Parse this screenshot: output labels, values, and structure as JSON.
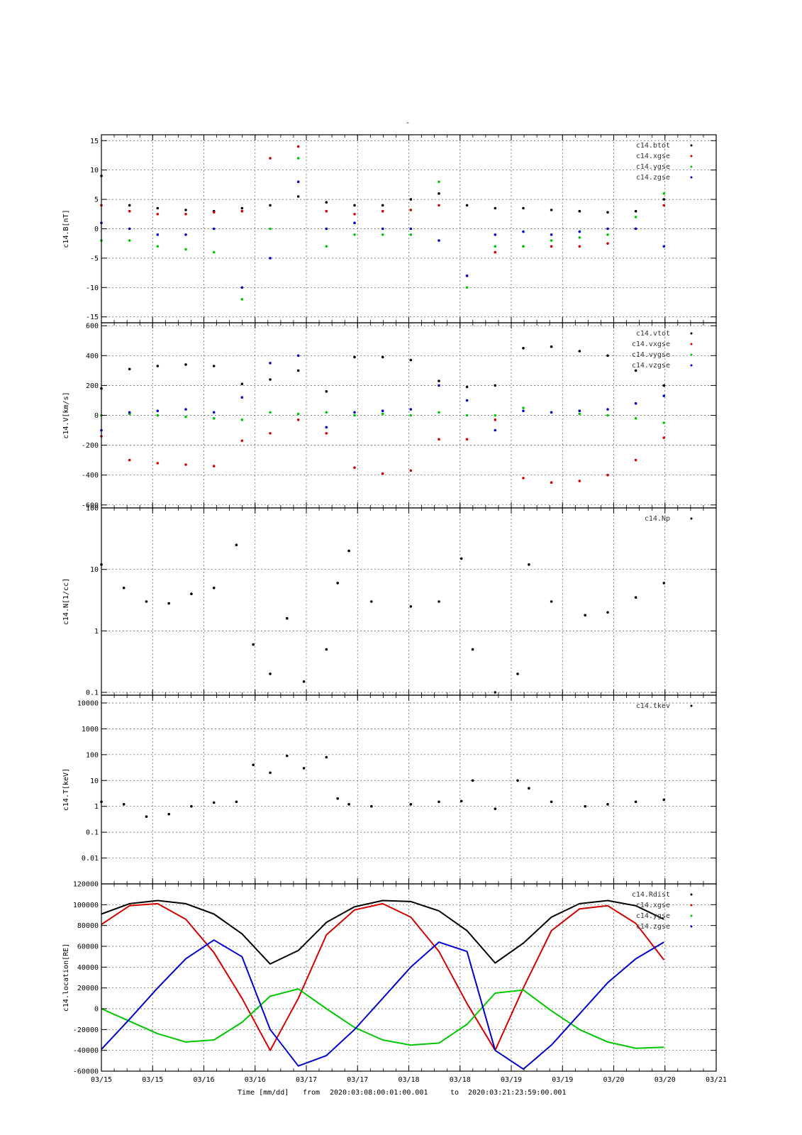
{
  "title": "-",
  "footer": {
    "time_label": "Time [mm/dd]",
    "from_label": "from",
    "from": "2020:03:08:00:01:00.001",
    "to_label": "to",
    "to": "2020:03:21:23:59:00.001"
  },
  "x_tick_labels": [
    "03/15",
    "03/15",
    "03/16",
    "03/16",
    "03/17",
    "03/17",
    "03/18",
    "03/18",
    "03/19",
    "03/19",
    "03/20",
    "03/20",
    "03/21"
  ],
  "colors": {
    "black": "#000000",
    "red": "#d40000",
    "green": "#00c800",
    "blue": "#0000d0"
  },
  "chart_data": [
    {
      "type": "scatter",
      "ylabel": "c14.B[nT]",
      "ylim": [
        -16,
        16
      ],
      "y_ticks": [
        -15,
        -10,
        -5,
        0,
        5,
        10,
        15
      ],
      "grid": true,
      "legend_position": "top-right",
      "series": [
        {
          "name": "c14.btot",
          "color": "black",
          "x": [
            0,
            0.05,
            0.1,
            0.15,
            0.2,
            0.25,
            0.3,
            0.35,
            0.4,
            0.45,
            0.5,
            0.55,
            0.6,
            0.65,
            0.7,
            0.75,
            0.8,
            0.85,
            0.9,
            0.95,
            1.0
          ],
          "y": [
            9,
            4,
            3.5,
            3.2,
            3,
            3.5,
            4,
            5.5,
            4.5,
            4,
            4,
            5,
            6,
            4,
            3.5,
            3.5,
            3.2,
            3,
            2.8,
            3,
            5
          ]
        },
        {
          "name": "c14.xgse",
          "color": "red",
          "x": [
            0,
            0.05,
            0.1,
            0.15,
            0.2,
            0.25,
            0.3,
            0.35,
            0.4,
            0.45,
            0.5,
            0.55,
            0.6,
            0.65,
            0.7,
            0.75,
            0.8,
            0.85,
            0.9,
            0.95,
            1.0
          ],
          "y": [
            4,
            3,
            2.5,
            2.5,
            2.8,
            3,
            12,
            14,
            3,
            2.5,
            3,
            3.2,
            4,
            -8,
            -4,
            -3,
            -3,
            -3,
            -2.5,
            0,
            4
          ]
        },
        {
          "name": "c14.ygse",
          "color": "green",
          "x": [
            0,
            0.05,
            0.1,
            0.15,
            0.2,
            0.25,
            0.3,
            0.35,
            0.4,
            0.45,
            0.5,
            0.55,
            0.6,
            0.65,
            0.7,
            0.75,
            0.8,
            0.85,
            0.9,
            0.95,
            1.0
          ],
          "y": [
            -2,
            -2,
            -3,
            -3.5,
            -4,
            -12,
            0,
            12,
            -3,
            -1,
            -1,
            -1,
            8,
            -10,
            -3,
            -3,
            -2,
            -1.5,
            -1,
            2,
            6
          ]
        },
        {
          "name": "c14.zgse",
          "color": "blue",
          "x": [
            0,
            0.05,
            0.1,
            0.15,
            0.2,
            0.25,
            0.3,
            0.35,
            0.4,
            0.45,
            0.5,
            0.55,
            0.6,
            0.65,
            0.7,
            0.75,
            0.8,
            0.85,
            0.9,
            0.95,
            1.0
          ],
          "y": [
            1,
            0,
            -1,
            -1,
            0,
            -10,
            -5,
            8,
            0,
            1,
            0,
            0,
            -2,
            -8,
            -1,
            -0.5,
            -1,
            -0.5,
            0,
            0,
            -3
          ]
        }
      ]
    },
    {
      "type": "scatter",
      "ylabel": "c14.V[km/s]",
      "ylim": [
        -620,
        620
      ],
      "y_ticks": [
        -600,
        -400,
        -200,
        0,
        200,
        400,
        600
      ],
      "grid": true,
      "legend_position": "top-right",
      "series": [
        {
          "name": "c14.vtot",
          "color": "black",
          "x": [
            0,
            0.05,
            0.1,
            0.15,
            0.2,
            0.25,
            0.3,
            0.35,
            0.4,
            0.45,
            0.5,
            0.55,
            0.6,
            0.65,
            0.7,
            0.75,
            0.8,
            0.85,
            0.9,
            0.95,
            1.0
          ],
          "y": [
            180,
            310,
            330,
            340,
            330,
            210,
            240,
            300,
            160,
            390,
            390,
            370,
            230,
            190,
            200,
            450,
            460,
            430,
            400,
            300,
            200
          ]
        },
        {
          "name": "c14.vxgse",
          "color": "red",
          "x": [
            0,
            0.05,
            0.1,
            0.15,
            0.2,
            0.25,
            0.3,
            0.35,
            0.4,
            0.45,
            0.5,
            0.55,
            0.6,
            0.65,
            0.7,
            0.75,
            0.8,
            0.85,
            0.9,
            0.95,
            1.0
          ],
          "y": [
            -140,
            -300,
            -320,
            -330,
            -340,
            -170,
            -120,
            -30,
            -120,
            -350,
            -390,
            -370,
            -160,
            -160,
            -30,
            -420,
            -450,
            -440,
            -400,
            -300,
            -150
          ]
        },
        {
          "name": "c14.vygse",
          "color": "green",
          "x": [
            0,
            0.05,
            0.1,
            0.15,
            0.2,
            0.25,
            0.3,
            0.35,
            0.4,
            0.45,
            0.5,
            0.55,
            0.6,
            0.65,
            0.7,
            0.75,
            0.8,
            0.85,
            0.9,
            0.95,
            1.0
          ],
          "y": [
            0,
            10,
            0,
            -10,
            -20,
            -30,
            20,
            10,
            20,
            0,
            10,
            0,
            20,
            0,
            0,
            50,
            20,
            10,
            0,
            -20,
            -50
          ]
        },
        {
          "name": "c14.vzgse",
          "color": "blue",
          "x": [
            0,
            0.05,
            0.1,
            0.15,
            0.2,
            0.25,
            0.3,
            0.35,
            0.4,
            0.45,
            0.5,
            0.55,
            0.6,
            0.65,
            0.7,
            0.75,
            0.8,
            0.85,
            0.9,
            0.95,
            1.0
          ],
          "y": [
            -100,
            20,
            30,
            40,
            20,
            120,
            350,
            400,
            -80,
            20,
            30,
            40,
            200,
            100,
            -100,
            30,
            20,
            30,
            40,
            80,
            130
          ]
        }
      ]
    },
    {
      "type": "scatter",
      "ylabel": "c14.N[1/cc]",
      "yscale": "log",
      "ylim": [
        0.09,
        100
      ],
      "y_ticks": [
        0.1,
        1,
        10,
        100
      ],
      "grid": true,
      "legend_position": "top-right",
      "series": [
        {
          "name": "c14.Np",
          "color": "black",
          "x": [
            0,
            0.04,
            0.08,
            0.12,
            0.16,
            0.2,
            0.24,
            0.27,
            0.3,
            0.33,
            0.36,
            0.4,
            0.42,
            0.44,
            0.48,
            0.55,
            0.6,
            0.64,
            0.66,
            0.7,
            0.74,
            0.76,
            0.8,
            0.86,
            0.9,
            0.95,
            1.0
          ],
          "y": [
            12,
            5,
            3,
            2.8,
            4,
            5,
            25,
            0.6,
            0.2,
            1.6,
            0.15,
            0.5,
            6,
            20,
            3,
            2.5,
            3,
            15,
            0.5,
            0.1,
            0.2,
            12,
            3,
            1.8,
            2,
            3.5,
            6
          ]
        }
      ]
    },
    {
      "type": "scatter",
      "ylabel": "c14.T[keV]",
      "yscale": "log",
      "ylim": [
        0.001,
        20000
      ],
      "y_ticks": [
        0.01,
        0.1,
        1,
        10,
        100,
        1000,
        10000
      ],
      "grid": true,
      "legend_position": "top-right",
      "series": [
        {
          "name": "c14.tkev",
          "color": "black",
          "x": [
            0,
            0.04,
            0.08,
            0.12,
            0.16,
            0.2,
            0.24,
            0.27,
            0.3,
            0.33,
            0.36,
            0.4,
            0.42,
            0.44,
            0.48,
            0.55,
            0.6,
            0.64,
            0.66,
            0.7,
            0.74,
            0.76,
            0.8,
            0.86,
            0.9,
            0.95,
            1.0
          ],
          "y": [
            1.5,
            1.2,
            0.4,
            0.5,
            1,
            1.4,
            1.5,
            40,
            20,
            90,
            30,
            80,
            2,
            1.2,
            1,
            1.2,
            1.5,
            1.6,
            10,
            0.8,
            10,
            5,
            1.5,
            1,
            1.2,
            1.5,
            1.8
          ]
        }
      ]
    },
    {
      "type": "line",
      "ylabel": "c14.location[RE]",
      "ylim": [
        -60000,
        120000
      ],
      "y_ticks": [
        -60000,
        -40000,
        -20000,
        0,
        20000,
        40000,
        60000,
        80000,
        100000,
        120000
      ],
      "grid": true,
      "legend_position": "top-right",
      "series": [
        {
          "name": "c14.Rdist",
          "color": "black",
          "x": [
            0,
            0.05,
            0.1,
            0.15,
            0.2,
            0.25,
            0.3,
            0.35,
            0.4,
            0.45,
            0.5,
            0.55,
            0.6,
            0.65,
            0.7,
            0.75,
            0.8,
            0.85,
            0.9,
            0.95,
            1.0
          ],
          "y": [
            91000,
            101000,
            104000,
            101000,
            91000,
            72000,
            43000,
            56000,
            83000,
            98000,
            104000,
            103000,
            94000,
            75000,
            44000,
            63000,
            88000,
            101000,
            104000,
            99000,
            86000
          ]
        },
        {
          "name": "c14.xgse",
          "color": "red",
          "x": [
            0,
            0.05,
            0.1,
            0.15,
            0.2,
            0.25,
            0.3,
            0.35,
            0.4,
            0.45,
            0.5,
            0.55,
            0.6,
            0.65,
            0.7,
            0.75,
            0.8,
            0.85,
            0.9,
            0.95,
            1.0
          ],
          "y": [
            81000,
            99000,
            101000,
            86000,
            54000,
            10000,
            -40000,
            10000,
            71000,
            95000,
            101000,
            88000,
            55000,
            5000,
            -40000,
            20000,
            75000,
            96000,
            99000,
            82000,
            47000
          ]
        },
        {
          "name": "c14.ygse",
          "color": "green",
          "x": [
            0,
            0.05,
            0.1,
            0.15,
            0.2,
            0.25,
            0.3,
            0.35,
            0.4,
            0.45,
            0.5,
            0.55,
            0.6,
            0.65,
            0.7,
            0.75,
            0.8,
            0.85,
            0.9,
            0.95,
            1.0
          ],
          "y": [
            0,
            -12000,
            -24000,
            -32000,
            -30000,
            -13000,
            12000,
            19000,
            0,
            -18000,
            -30000,
            -35000,
            -33000,
            -15000,
            15000,
            18000,
            -2000,
            -20000,
            -32000,
            -38000,
            -37000
          ]
        },
        {
          "name": "c14.zgse",
          "color": "blue",
          "x": [
            0,
            0.05,
            0.1,
            0.15,
            0.2,
            0.25,
            0.3,
            0.35,
            0.4,
            0.45,
            0.5,
            0.55,
            0.6,
            0.65,
            0.7,
            0.75,
            0.8,
            0.85,
            0.9,
            0.95,
            1.0
          ],
          "y": [
            -39000,
            -10000,
            20000,
            48000,
            66000,
            50000,
            -20000,
            -55000,
            -45000,
            -20000,
            10000,
            40000,
            64000,
            55000,
            -40000,
            -58000,
            -35000,
            -5000,
            25000,
            48000,
            64000
          ]
        }
      ]
    }
  ]
}
